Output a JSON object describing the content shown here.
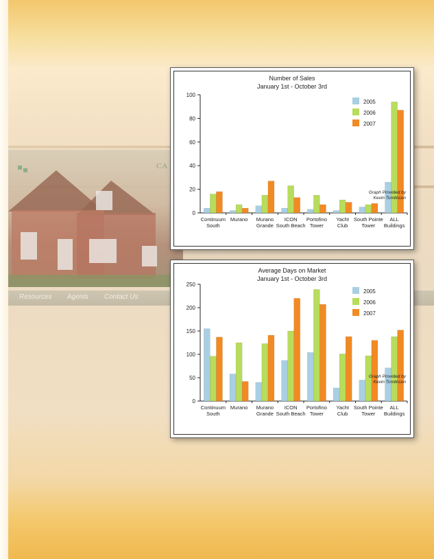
{
  "background": {
    "nav_items": [
      "Resources",
      "Agents",
      "Contact Us"
    ],
    "logo_text": "CA"
  },
  "colors": {
    "series_2005": "#a9cfe3",
    "series_2006": "#b8dc5c",
    "series_2007": "#f28a23"
  },
  "chart_data": [
    {
      "type": "bar",
      "title": "Number of Sales",
      "subtitle": "January 1st - October 3rd",
      "categories": [
        [
          "Continuum",
          "South"
        ],
        [
          "Murano"
        ],
        [
          "Murano",
          "Grande"
        ],
        [
          "ICON",
          "South Beach"
        ],
        [
          "Portofino",
          "Tower"
        ],
        [
          "Yacht",
          "Club"
        ],
        [
          "South Pointe",
          "Tower"
        ],
        [
          "ALL",
          "Buildings"
        ]
      ],
      "series": [
        {
          "name": "2005",
          "values": [
            4,
            2,
            6,
            4,
            3,
            2,
            5,
            26
          ]
        },
        {
          "name": "2006",
          "values": [
            16,
            7,
            15,
            23,
            15,
            11,
            7,
            94
          ]
        },
        {
          "name": "2007",
          "values": [
            18,
            4,
            27,
            13,
            7,
            9,
            8,
            87
          ]
        }
      ],
      "ylim": [
        0,
        100
      ],
      "yticks": [
        0,
        20,
        40,
        60,
        80,
        100
      ],
      "legend": "top-right",
      "annotation": [
        "Graph Provided by",
        "Kevin Tomlinson"
      ]
    },
    {
      "type": "bar",
      "title": "Average Days on Market",
      "subtitle": "January 1st - October 3rd",
      "categories": [
        [
          "Continuum",
          "South"
        ],
        [
          "Murano"
        ],
        [
          "Murano",
          "Grande"
        ],
        [
          "ICON",
          "South Beach"
        ],
        [
          "Portofino",
          "Tower"
        ],
        [
          "Yacht",
          "Club"
        ],
        [
          "South Pointe",
          "Tower"
        ],
        [
          "ALL",
          "Buildings"
        ]
      ],
      "series": [
        {
          "name": "2005",
          "values": [
            155,
            58,
            40,
            87,
            104,
            28,
            45,
            71
          ]
        },
        {
          "name": "2006",
          "values": [
            96,
            125,
            123,
            150,
            239,
            101,
            97,
            138
          ]
        },
        {
          "name": "2007",
          "values": [
            137,
            42,
            141,
            220,
            207,
            138,
            130,
            152
          ]
        }
      ],
      "ylim": [
        0,
        250
      ],
      "yticks": [
        0,
        50,
        100,
        150,
        200,
        250
      ],
      "legend": "top-right",
      "annotation": [
        "Graph Provided by",
        "Kevin Tomlinson"
      ]
    }
  ]
}
